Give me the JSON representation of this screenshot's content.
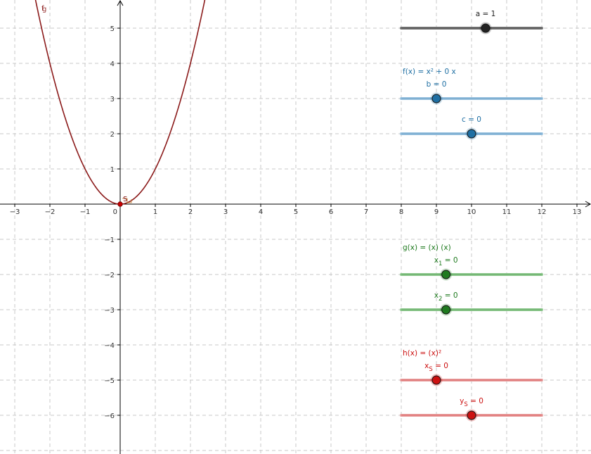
{
  "axes": {
    "x_ticks": [
      -3,
      -2,
      -1,
      1,
      2,
      3,
      4,
      5,
      6,
      7,
      8,
      9,
      10,
      11,
      12,
      13
    ],
    "y_ticks": [
      5,
      4,
      3,
      2,
      1,
      -1,
      -2,
      -3,
      -4,
      -5,
      -6
    ],
    "x_tick_labels": [
      "−3",
      "−2",
      "−1",
      "1",
      "2",
      "3",
      "4",
      "5",
      "6",
      "7",
      "8",
      "9",
      "10",
      "11",
      "12",
      "13"
    ],
    "y_tick_labels": [
      "5",
      "4",
      "3",
      "2",
      "1",
      "−1",
      "−2",
      "−3",
      "−4",
      "−5",
      "−6"
    ],
    "origin_label": "0",
    "x_range": [
      -3.4,
      13.4
    ],
    "y_range": [
      -7.0,
      5.8
    ],
    "grid": true
  },
  "curve": {
    "labels": [
      "f",
      "g"
    ],
    "a": 1,
    "b": 0,
    "c": 0,
    "color": "#8b1a1a"
  },
  "vertex": {
    "label": "S",
    "x": 0,
    "y": 0,
    "color": "#cc0000"
  },
  "function_labels": {
    "f": "f(x) = x² + 0 x",
    "g": "g(x) = (x) (x)",
    "h": "h(x) = (x)²"
  },
  "sliders": [
    {
      "id": "a",
      "name": "a",
      "sub": "",
      "display": " = 1",
      "value": 1,
      "min": -5,
      "max": 5,
      "color": "#222222",
      "track": "#777777",
      "y": 5
    },
    {
      "id": "b",
      "name": "b",
      "sub": "",
      "display": " = 0",
      "value": 0,
      "min": -5,
      "max": 15,
      "color": "#1f6fa3",
      "track": "#9cc3e0",
      "y": 3
    },
    {
      "id": "c",
      "name": "c",
      "sub": "",
      "display": " = 0",
      "value": 0,
      "min": -10,
      "max": 10,
      "color": "#1f6fa3",
      "track": "#9cc3e0",
      "y": 2
    },
    {
      "id": "x1",
      "name": "x",
      "sub": "1",
      "display": " = 0",
      "value": 0,
      "min": -7,
      "max": 15,
      "color": "#1f7a1f",
      "track": "#8fc98f",
      "y": -2
    },
    {
      "id": "x2",
      "name": "x",
      "sub": "2",
      "display": " = 0",
      "value": 0,
      "min": -7,
      "max": 15,
      "color": "#1f7a1f",
      "track": "#8fc98f",
      "y": -3
    },
    {
      "id": "xs",
      "name": "x",
      "sub": "S",
      "display": " = 0",
      "value": 0,
      "min": -5,
      "max": 15,
      "color": "#cc1111",
      "track": "#e8a0a0",
      "y": -5
    },
    {
      "id": "ys",
      "name": "y",
      "sub": "S",
      "display": " = 0",
      "value": 0,
      "min": -10,
      "max": 10,
      "color": "#cc1111",
      "track": "#e8a0a0",
      "y": -6
    }
  ],
  "colors": {
    "grid": "#c8c8c8",
    "axis": "#000000",
    "f_label": "#1f6fa3",
    "g_label": "#1f7a1f",
    "h_label": "#cc1111"
  }
}
